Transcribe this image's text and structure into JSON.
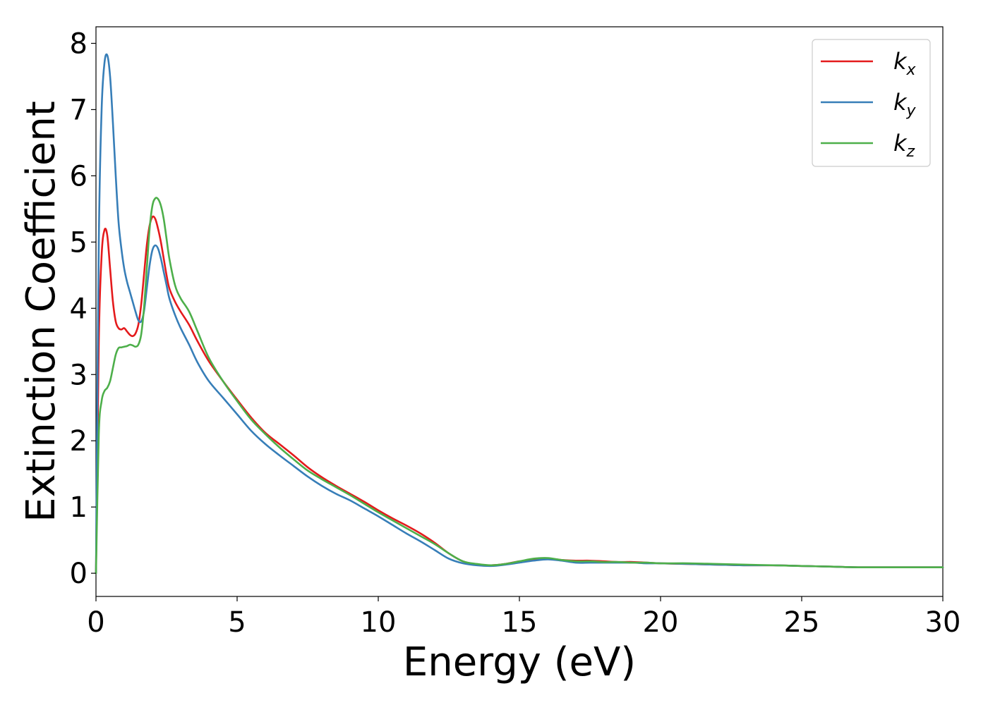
{
  "chart_data": {
    "type": "line",
    "title": "",
    "xlabel": "Energy (eV)",
    "ylabel": "Extinction Coefficient",
    "xlim": [
      0,
      30
    ],
    "ylim": [
      -0.35,
      8.25
    ],
    "xticks": [
      0,
      5,
      10,
      15,
      20,
      25,
      30
    ],
    "yticks": [
      0,
      1,
      2,
      3,
      4,
      5,
      6,
      7,
      8
    ],
    "grid": false,
    "legend_position": "top-right",
    "series": [
      {
        "name": "k",
        "subscript": "x",
        "color": "#e41a1c",
        "x": [
          0,
          0.1,
          0.2,
          0.3,
          0.4,
          0.5,
          0.6,
          0.7,
          0.8,
          0.9,
          1.0,
          1.1,
          1.2,
          1.3,
          1.4,
          1.5,
          1.6,
          1.7,
          1.8,
          1.9,
          2.0,
          2.1,
          2.2,
          2.3,
          2.4,
          2.5,
          2.6,
          2.8,
          3.0,
          3.3,
          3.6,
          4.0,
          4.5,
          5.0,
          5.5,
          6.0,
          6.5,
          7.0,
          7.5,
          8.0,
          8.5,
          9.0,
          9.5,
          10.0,
          10.5,
          11.0,
          11.5,
          12.0,
          12.5,
          13.0,
          13.5,
          14.0,
          14.5,
          15.0,
          15.5,
          16.0,
          16.5,
          17.0,
          17.5,
          18.0,
          18.5,
          19.0,
          19.5,
          20.0,
          21.0,
          22.0,
          23.0,
          24.0,
          25.0,
          26.0,
          27.0,
          28.0,
          29.0,
          30.0
        ],
        "y": [
          0,
          3.5,
          4.8,
          5.18,
          5.1,
          4.6,
          4.1,
          3.8,
          3.7,
          3.68,
          3.7,
          3.65,
          3.6,
          3.58,
          3.62,
          3.75,
          4.05,
          4.5,
          4.95,
          5.25,
          5.38,
          5.35,
          5.2,
          5.0,
          4.75,
          4.5,
          4.3,
          4.1,
          3.95,
          3.75,
          3.5,
          3.2,
          2.9,
          2.62,
          2.35,
          2.12,
          1.95,
          1.78,
          1.6,
          1.45,
          1.32,
          1.2,
          1.08,
          0.95,
          0.83,
          0.72,
          0.6,
          0.46,
          0.3,
          0.18,
          0.13,
          0.12,
          0.14,
          0.18,
          0.2,
          0.22,
          0.2,
          0.19,
          0.19,
          0.18,
          0.17,
          0.17,
          0.16,
          0.15,
          0.14,
          0.13,
          0.12,
          0.12,
          0.11,
          0.1,
          0.09,
          0.09,
          0.09,
          0.09
        ]
      },
      {
        "name": "k",
        "subscript": "y",
        "color": "#377eb8",
        "x": [
          0,
          0.1,
          0.2,
          0.3,
          0.4,
          0.5,
          0.6,
          0.7,
          0.8,
          0.9,
          1.0,
          1.1,
          1.2,
          1.3,
          1.4,
          1.5,
          1.6,
          1.7,
          1.8,
          1.9,
          2.0,
          2.1,
          2.2,
          2.3,
          2.4,
          2.5,
          2.6,
          2.8,
          3.0,
          3.3,
          3.6,
          4.0,
          4.5,
          5.0,
          5.5,
          6.0,
          6.5,
          7.0,
          7.5,
          8.0,
          8.5,
          9.0,
          9.5,
          10.0,
          10.5,
          11.0,
          11.5,
          12.0,
          12.5,
          13.0,
          13.5,
          14.0,
          14.5,
          15.0,
          15.5,
          16.0,
          16.5,
          17.0,
          17.5,
          18.0,
          18.5,
          19.0,
          19.5,
          20.0,
          21.0,
          22.0,
          23.0,
          24.0,
          25.0,
          26.0,
          27.0,
          28.0,
          29.0,
          30.0
        ],
        "y": [
          0,
          5.0,
          7.0,
          7.7,
          7.82,
          7.5,
          6.8,
          6.0,
          5.3,
          4.9,
          4.6,
          4.4,
          4.25,
          4.1,
          3.95,
          3.82,
          3.8,
          3.95,
          4.3,
          4.65,
          4.88,
          4.95,
          4.9,
          4.75,
          4.55,
          4.35,
          4.15,
          3.9,
          3.7,
          3.45,
          3.18,
          2.9,
          2.65,
          2.4,
          2.15,
          1.95,
          1.78,
          1.62,
          1.46,
          1.32,
          1.2,
          1.1,
          0.98,
          0.86,
          0.73,
          0.6,
          0.48,
          0.35,
          0.22,
          0.15,
          0.12,
          0.11,
          0.13,
          0.16,
          0.19,
          0.21,
          0.19,
          0.16,
          0.16,
          0.16,
          0.16,
          0.16,
          0.15,
          0.15,
          0.14,
          0.13,
          0.12,
          0.12,
          0.11,
          0.1,
          0.09,
          0.09,
          0.09,
          0.09
        ]
      },
      {
        "name": "k",
        "subscript": "z",
        "color": "#4daf4a",
        "x": [
          0,
          0.1,
          0.2,
          0.3,
          0.4,
          0.5,
          0.6,
          0.7,
          0.8,
          0.9,
          1.0,
          1.1,
          1.2,
          1.3,
          1.4,
          1.5,
          1.6,
          1.7,
          1.8,
          1.9,
          2.0,
          2.1,
          2.2,
          2.3,
          2.4,
          2.5,
          2.6,
          2.8,
          3.0,
          3.3,
          3.6,
          4.0,
          4.5,
          5.0,
          5.5,
          6.0,
          6.5,
          7.0,
          7.5,
          8.0,
          8.5,
          9.0,
          9.5,
          10.0,
          10.5,
          11.0,
          11.5,
          12.0,
          12.5,
          13.0,
          13.5,
          14.0,
          14.5,
          15.0,
          15.5,
          16.0,
          16.5,
          17.0,
          17.5,
          18.0,
          18.5,
          19.0,
          19.5,
          20.0,
          21.0,
          22.0,
          23.0,
          24.0,
          25.0,
          26.0,
          27.0,
          28.0,
          29.0,
          30.0
        ],
        "y": [
          0,
          2.1,
          2.6,
          2.75,
          2.8,
          2.9,
          3.1,
          3.3,
          3.4,
          3.41,
          3.42,
          3.43,
          3.45,
          3.44,
          3.42,
          3.45,
          3.6,
          4.0,
          4.6,
          5.2,
          5.55,
          5.66,
          5.65,
          5.55,
          5.35,
          5.05,
          4.75,
          4.35,
          4.15,
          3.95,
          3.65,
          3.25,
          2.9,
          2.6,
          2.32,
          2.1,
          1.9,
          1.72,
          1.55,
          1.42,
          1.3,
          1.18,
          1.05,
          0.92,
          0.8,
          0.68,
          0.56,
          0.44,
          0.3,
          0.18,
          0.14,
          0.12,
          0.14,
          0.18,
          0.22,
          0.23,
          0.2,
          0.18,
          0.18,
          0.17,
          0.17,
          0.16,
          0.16,
          0.15,
          0.15,
          0.14,
          0.13,
          0.12,
          0.11,
          0.1,
          0.09,
          0.09,
          0.09,
          0.09
        ]
      }
    ]
  }
}
